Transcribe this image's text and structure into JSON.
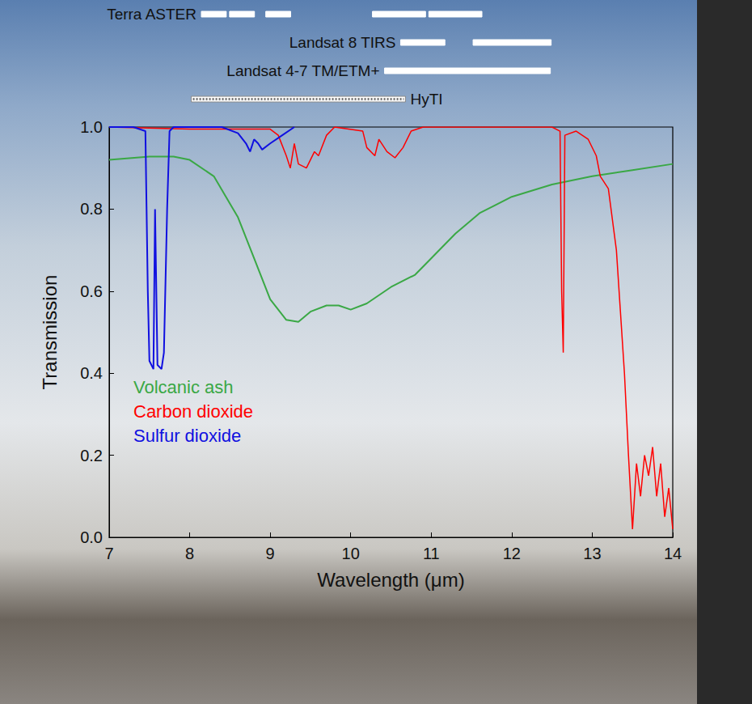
{
  "chart_data": {
    "type": "line",
    "x_label": "Wavelength (μm)",
    "y_label": "Transmission",
    "xlim": [
      7,
      14
    ],
    "xticks": [
      7,
      8,
      9,
      10,
      11,
      12,
      13,
      14
    ],
    "ylim": [
      0,
      1
    ],
    "yticks": [
      {
        "value": 0,
        "label": "0.0"
      },
      0.2,
      0.4,
      0.6,
      0.8,
      {
        "value": 1,
        "label": "1.0"
      }
    ],
    "grid": false,
    "legend": "lower left",
    "series": [
      {
        "name": "Volcanic ash",
        "color": "#3aa845",
        "x": [
          7,
          7.5,
          7.8,
          8.0,
          8.3,
          8.6,
          8.8,
          9.0,
          9.2,
          9.35,
          9.5,
          9.7,
          9.85,
          10.0,
          10.2,
          10.5,
          10.8,
          11.0,
          11.3,
          11.6,
          12.0,
          12.5,
          13.0,
          13.5,
          14.0
        ],
        "values": [
          0.92,
          0.928,
          0.928,
          0.92,
          0.88,
          0.78,
          0.68,
          0.58,
          0.53,
          0.525,
          0.55,
          0.565,
          0.565,
          0.555,
          0.57,
          0.61,
          0.64,
          0.68,
          0.74,
          0.79,
          0.83,
          0.86,
          0.88,
          0.895,
          0.91
        ]
      },
      {
        "name": "Carbon dioxide",
        "color": "#ff0000",
        "x": [
          7.0,
          8.0,
          9.0,
          9.1,
          9.2,
          9.25,
          9.3,
          9.35,
          9.45,
          9.55,
          9.6,
          9.7,
          9.8,
          10.15,
          10.2,
          10.3,
          10.35,
          10.45,
          10.55,
          10.65,
          10.75,
          10.9,
          12.5,
          12.6,
          12.62,
          12.64,
          12.66,
          12.8,
          12.95,
          13.05,
          13.1,
          13.2,
          13.3,
          13.35,
          13.4,
          13.45,
          13.5,
          13.55,
          13.6,
          13.65,
          13.7,
          13.75,
          13.8,
          13.85,
          13.9,
          13.95,
          14.0
        ],
        "values": [
          1.0,
          0.995,
          0.995,
          0.98,
          0.93,
          0.9,
          0.96,
          0.91,
          0.9,
          0.94,
          0.93,
          0.98,
          1.0,
          0.99,
          0.95,
          0.93,
          0.97,
          0.94,
          0.925,
          0.95,
          0.99,
          1.0,
          1.0,
          0.99,
          0.6,
          0.45,
          0.98,
          0.99,
          0.97,
          0.93,
          0.88,
          0.85,
          0.7,
          0.55,
          0.4,
          0.2,
          0.02,
          0.18,
          0.1,
          0.2,
          0.15,
          0.22,
          0.1,
          0.18,
          0.05,
          0.12,
          0.02
        ]
      },
      {
        "name": "Sulfur dioxide",
        "color": "#1010e0",
        "x": [
          7.0,
          7.3,
          7.45,
          7.48,
          7.5,
          7.55,
          7.57,
          7.6,
          7.65,
          7.68,
          7.72,
          7.75,
          7.8,
          8.4,
          8.6,
          8.7,
          8.75,
          8.8,
          8.85,
          8.9,
          9.0,
          9.15,
          9.3
        ],
        "values": [
          1.0,
          1.0,
          0.99,
          0.6,
          0.43,
          0.41,
          0.8,
          0.42,
          0.41,
          0.45,
          0.8,
          0.99,
          1.0,
          1.0,
          0.985,
          0.96,
          0.94,
          0.97,
          0.96,
          0.945,
          0.96,
          0.98,
          1.0
        ]
      }
    ],
    "bands": [
      {
        "name": "Terra ASTER",
        "ranges": [
          [
            8.125,
            8.475
          ],
          [
            8.475,
            8.825
          ],
          [
            8.925,
            9.275
          ],
          [
            10.25,
            10.95
          ],
          [
            10.95,
            11.65
          ]
        ],
        "line_style": "solid"
      },
      {
        "name": "Landsat 8 TIRS",
        "ranges": [
          [
            10.6,
            11.19
          ],
          [
            11.5,
            12.51
          ]
        ],
        "line_style": "solid"
      },
      {
        "name": "Landsat 4-7 TM/ETM+",
        "ranges": [
          [
            10.4,
            12.5
          ]
        ],
        "line_style": "solid"
      },
      {
        "name": "HyTI",
        "ranges": [
          [
            8.0,
            10.7
          ]
        ],
        "line_style": "dotted"
      }
    ]
  }
}
